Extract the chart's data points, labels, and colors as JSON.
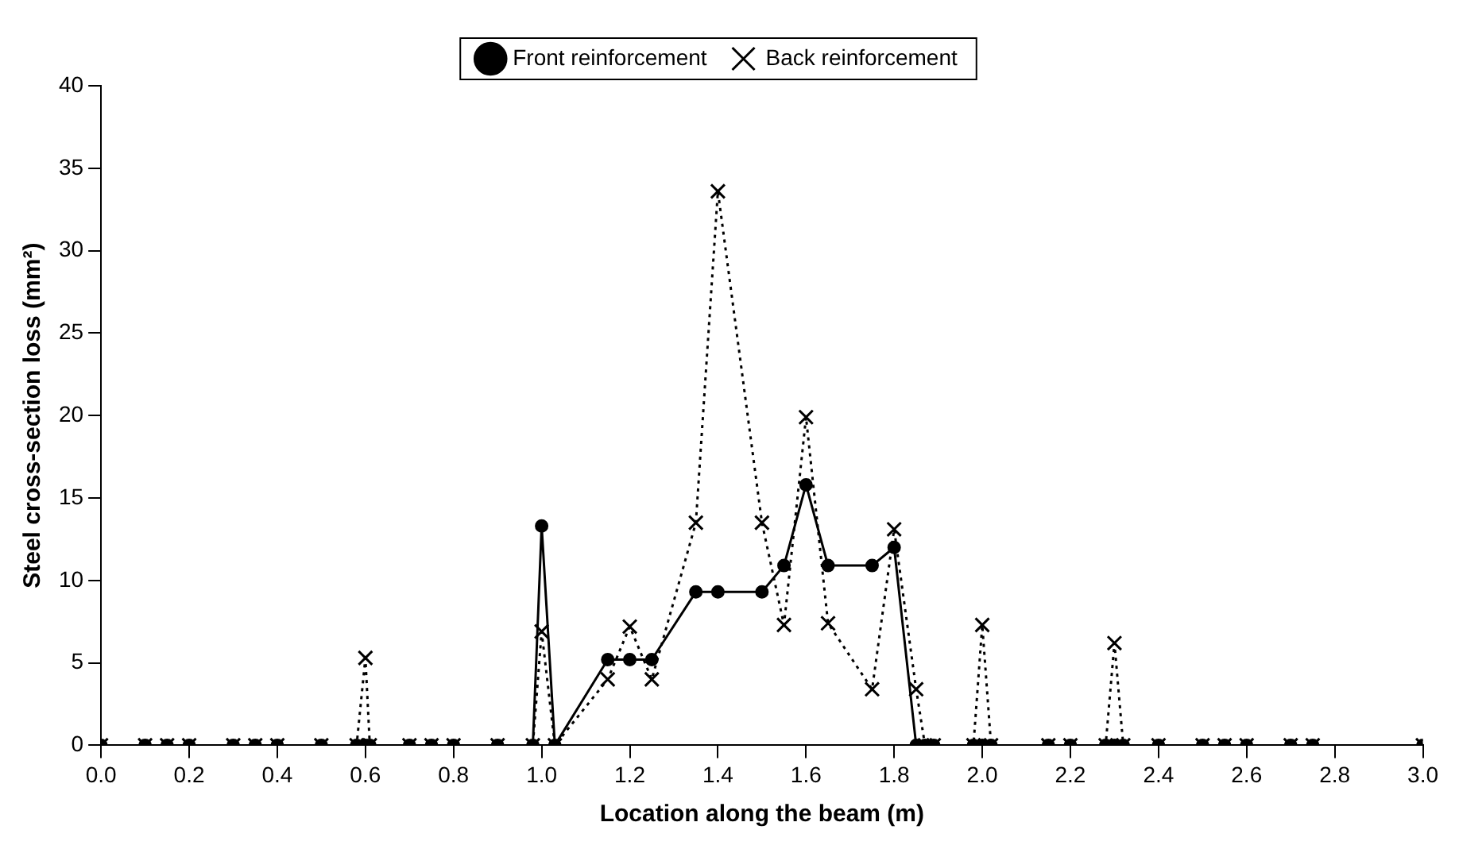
{
  "chart_data": {
    "type": "line",
    "xlabel": "Location along the beam (m)",
    "ylabel": "Steel cross-section loss (mm²)",
    "x": [
      0.0,
      0.1,
      0.15,
      0.2,
      0.3,
      0.35,
      0.4,
      0.5,
      0.58,
      0.6,
      0.61,
      0.7,
      0.75,
      0.8,
      0.9,
      0.98,
      1.0,
      1.03,
      1.15,
      1.2,
      1.25,
      1.35,
      1.4,
      1.5,
      1.55,
      1.6,
      1.65,
      1.75,
      1.8,
      1.85,
      1.87,
      1.89,
      1.98,
      2.0,
      2.02,
      2.15,
      2.2,
      2.28,
      2.3,
      2.32,
      2.4,
      2.5,
      2.55,
      2.6,
      2.7,
      2.75,
      3.0
    ],
    "series": [
      {
        "name": "Front reinforcement",
        "color": "#000000",
        "marker": "circle",
        "line_style": "solid",
        "values": [
          0,
          0,
          0,
          0,
          0,
          0,
          0,
          0,
          0,
          0,
          0,
          0,
          0,
          0,
          0,
          0,
          13.3,
          0,
          5.2,
          5.2,
          5.2,
          9.3,
          9.3,
          9.3,
          10.9,
          15.8,
          10.9,
          10.9,
          12.0,
          0,
          0,
          0,
          0,
          0,
          0,
          0,
          0,
          0,
          0,
          0,
          0,
          0,
          0,
          0,
          0,
          0,
          0
        ]
      },
      {
        "name": "Back reinforcement",
        "color": "#000000",
        "marker": "cross",
        "line_style": "dotted",
        "values": [
          0,
          0,
          0,
          0,
          0,
          0,
          0,
          0,
          0,
          5.3,
          0,
          0,
          0,
          0,
          0,
          0,
          6.9,
          0,
          4.0,
          7.2,
          4.0,
          13.5,
          33.6,
          13.5,
          7.3,
          19.9,
          7.4,
          3.4,
          13.1,
          3.4,
          0,
          0,
          0,
          7.3,
          0,
          0,
          0,
          0,
          6.2,
          0,
          0,
          0,
          0,
          0,
          0,
          0,
          0
        ]
      }
    ],
    "xlim": [
      0,
      3
    ],
    "xticks": [
      {
        "value": 0,
        "label": "0.0"
      },
      {
        "value": 0.2,
        "label": "0.2"
      },
      {
        "value": 0.4,
        "label": "0.4"
      },
      {
        "value": 0.6,
        "label": "0.6"
      },
      {
        "value": 0.8,
        "label": "0.8"
      },
      {
        "value": 1,
        "label": "1.0"
      },
      {
        "value": 1.2,
        "label": "1.2"
      },
      {
        "value": 1.4,
        "label": "1.4"
      },
      {
        "value": 1.6,
        "label": "1.6"
      },
      {
        "value": 1.8,
        "label": "1.8"
      },
      {
        "value": 2,
        "label": "2.0"
      },
      {
        "value": 2.2,
        "label": "2.2"
      },
      {
        "value": 2.4,
        "label": "2.4"
      },
      {
        "value": 2.6,
        "label": "2.6"
      },
      {
        "value": 2.8,
        "label": "2.8"
      },
      {
        "value": 3,
        "label": "3.0"
      }
    ],
    "ylim": [
      0,
      40
    ],
    "yticks": [
      0,
      5,
      10,
      15,
      20,
      25,
      30,
      35,
      40
    ],
    "grid": false,
    "legend": "top"
  }
}
